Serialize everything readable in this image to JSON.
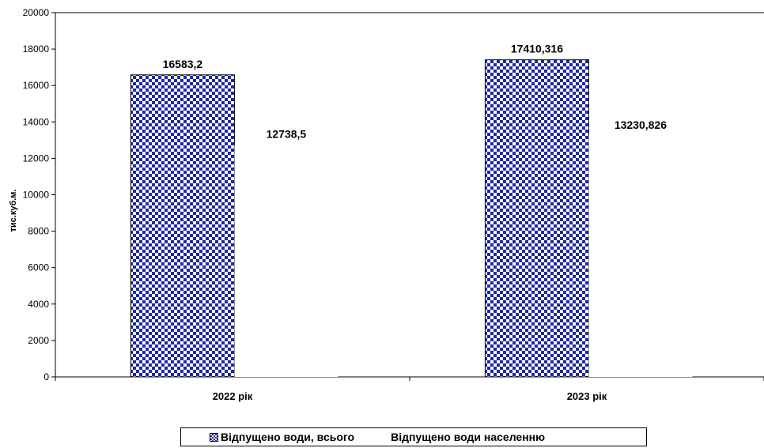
{
  "chart_data": {
    "type": "bar",
    "categories": [
      "2022 рік",
      "2023 рік"
    ],
    "series": [
      {
        "name": "Відпущено води, всього",
        "values": [
          16583.2,
          17410.316
        ],
        "labels": [
          "16583,2",
          "17410,316"
        ],
        "color": "#1f2aa0"
      },
      {
        "name": "Відпущено води населенню",
        "values": [
          12738.5,
          13230.826
        ],
        "labels": [
          "12738,5",
          "13230,826"
        ],
        "color": "#ffffff"
      }
    ],
    "ylabel": "тис.куб.м.",
    "ylim": [
      0,
      20000
    ],
    "yticks": [
      "0",
      "2000",
      "4000",
      "6000",
      "8000",
      "10000",
      "12000",
      "14000",
      "16000",
      "18000",
      "20000"
    ],
    "grid": false,
    "legend_position": "bottom"
  }
}
